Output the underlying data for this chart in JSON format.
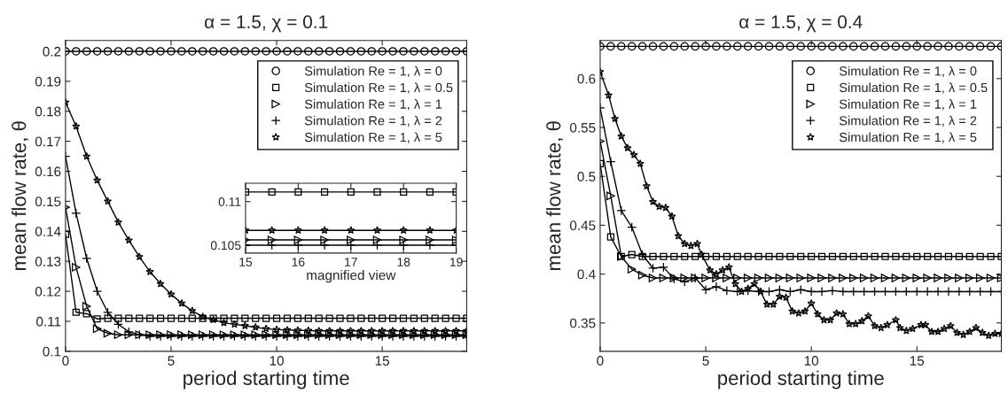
{
  "chart_data": [
    {
      "type": "line",
      "title": "α = 1.5, χ = 0.1",
      "xlabel": "period starting time",
      "ylabel": "mean flow rate, θ",
      "xlim": [
        0,
        19
      ],
      "ylim": [
        0.1,
        0.2036
      ],
      "xticks": [
        0,
        5,
        10,
        15
      ],
      "yticks": [
        0.1,
        0.11,
        0.12,
        0.13,
        0.14,
        0.15,
        0.16,
        0.17,
        0.18,
        0.19,
        0.2
      ],
      "grid": false,
      "legend": "top right",
      "x": [
        0,
        0.5,
        1,
        1.5,
        2,
        2.5,
        3,
        3.5,
        4,
        4.5,
        5,
        5.5,
        6,
        6.5,
        7,
        7.5,
        8,
        8.5,
        9,
        9.5,
        10,
        10.5,
        11,
        11.5,
        12,
        12.5,
        13,
        13.5,
        14,
        14.5,
        15,
        15.5,
        16,
        16.5,
        17,
        17.5,
        18,
        18.5,
        19
      ],
      "series": [
        {
          "name": "Simulation Re = 1, λ = 0",
          "color": "#000000",
          "marker": "circle",
          "values": [
            0.2,
            0.2,
            0.2,
            0.2,
            0.2,
            0.2,
            0.2,
            0.2,
            0.2,
            0.2,
            0.2,
            0.2,
            0.2,
            0.2,
            0.2,
            0.2,
            0.2,
            0.2,
            0.2,
            0.2,
            0.2,
            0.2,
            0.2,
            0.2,
            0.2,
            0.2,
            0.2,
            0.2,
            0.2,
            0.2,
            0.2,
            0.2,
            0.2,
            0.2,
            0.2,
            0.2,
            0.2,
            0.2,
            0.2
          ]
        },
        {
          "name": "Simulation Re = 1, λ = 0.5",
          "color": "#000000",
          "marker": "square",
          "values": [
            0.139,
            0.113,
            0.1125,
            0.1108,
            0.111,
            0.111,
            0.111,
            0.111,
            0.111,
            0.111,
            0.111,
            0.111,
            0.111,
            0.111,
            0.111,
            0.111,
            0.111,
            0.111,
            0.111,
            0.111,
            0.111,
            0.111,
            0.111,
            0.111,
            0.111,
            0.111,
            0.111,
            0.111,
            0.111,
            0.111,
            0.111,
            0.111,
            0.111,
            0.111,
            0.111,
            0.111,
            0.111,
            0.111,
            0.111
          ]
        },
        {
          "name": "Simulation Re = 1, λ = 1",
          "color": "#000000",
          "marker": "triangle",
          "values": [
            0.148,
            0.128,
            0.115,
            0.1075,
            0.106,
            0.1055,
            0.1055,
            0.1055,
            0.1055,
            0.1055,
            0.1055,
            0.1055,
            0.1055,
            0.1055,
            0.1055,
            0.1055,
            0.1055,
            0.1055,
            0.1055,
            0.1055,
            0.1055,
            0.1055,
            0.1055,
            0.1055,
            0.1055,
            0.1055,
            0.1055,
            0.1055,
            0.1055,
            0.1055,
            0.1055,
            0.1055,
            0.1055,
            0.1055,
            0.1055,
            0.1055,
            0.1055,
            0.1055,
            0.1055
          ]
        },
        {
          "name": "Simulation Re = 1, λ = 2",
          "color": "#000000",
          "marker": "cross",
          "values": [
            0.165,
            0.146,
            0.131,
            0.12,
            0.113,
            0.109,
            0.1065,
            0.1055,
            0.105,
            0.105,
            0.105,
            0.105,
            0.105,
            0.105,
            0.105,
            0.105,
            0.105,
            0.105,
            0.105,
            0.105,
            0.105,
            0.105,
            0.105,
            0.105,
            0.105,
            0.105,
            0.105,
            0.105,
            0.105,
            0.105,
            0.105,
            0.105,
            0.105,
            0.105,
            0.105,
            0.105,
            0.105,
            0.105,
            0.105
          ]
        },
        {
          "name": "Simulation Re = 1, λ = 5",
          "color": "#000000",
          "marker": "star",
          "values": [
            0.183,
            0.175,
            0.165,
            0.157,
            0.15,
            0.143,
            0.137,
            0.1315,
            0.1265,
            0.1225,
            0.119,
            0.116,
            0.1135,
            0.1115,
            0.1105,
            0.1095,
            0.109,
            0.1085,
            0.108,
            0.1075,
            0.1072,
            0.1071,
            0.107,
            0.1069,
            0.1068,
            0.1068,
            0.1068,
            0.1068,
            0.1068,
            0.1068,
            0.1068,
            0.1068,
            0.1068,
            0.1068,
            0.1068,
            0.1068,
            0.1068,
            0.1068,
            0.1068
          ]
        }
      ]
    },
    {
      "type": "line",
      "xlabel": "magnified view",
      "xlim": [
        15,
        19
      ],
      "ylim": [
        0.1041,
        0.1121
      ],
      "xticks": [
        15,
        16,
        17,
        18,
        19
      ],
      "yticks": [
        0.105,
        0.11
      ],
      "grid": false,
      "x": [
        15,
        15.5,
        16,
        16.5,
        17,
        17.5,
        18,
        18.5,
        19
      ],
      "series": [
        {
          "color": "#000000",
          "marker": "square",
          "values": [
            0.1111,
            0.1111,
            0.1111,
            0.1111,
            0.1111,
            0.1111,
            0.1111,
            0.1111,
            0.1111
          ]
        },
        {
          "color": "#000000",
          "marker": "star",
          "values": [
            0.1067,
            0.1067,
            0.1067,
            0.1067,
            0.1067,
            0.1067,
            0.1067,
            0.1067,
            0.1067
          ]
        },
        {
          "color": "#000000",
          "marker": "triangle",
          "values": [
            0.1056,
            0.1056,
            0.1056,
            0.1056,
            0.1056,
            0.1056,
            0.1056,
            0.1056,
            0.1056
          ]
        },
        {
          "color": "#000000",
          "marker": "cross",
          "values": [
            0.105,
            0.105,
            0.105,
            0.105,
            0.105,
            0.105,
            0.105,
            0.105,
            0.105
          ]
        }
      ]
    },
    {
      "type": "line",
      "title": "α = 1.5, χ = 0.4",
      "xlabel": "period starting time",
      "ylabel": "mean flow rate, θ",
      "xlim": [
        0,
        19
      ],
      "ylim": [
        0.321,
        0.639
      ],
      "xticks": [
        0,
        5,
        10,
        15
      ],
      "yticks": [
        0.35,
        0.4,
        0.45,
        0.5,
        0.55,
        0.6
      ],
      "grid": false,
      "legend": "top right",
      "x": [
        0,
        0.5,
        1,
        1.5,
        2,
        2.5,
        3,
        3.5,
        4,
        4.5,
        5,
        5.5,
        6,
        6.5,
        7,
        7.5,
        8,
        8.5,
        9,
        9.5,
        10,
        10.5,
        11,
        11.5,
        12,
        12.5,
        13,
        13.5,
        14,
        14.5,
        15,
        15.5,
        16,
        16.5,
        17,
        17.5,
        18,
        18.5,
        19
      ],
      "series": [
        {
          "name": "Simulation Re = 1, λ = 0",
          "color": "#000000",
          "marker": "circle",
          "values": [
            0.633,
            0.633,
            0.633,
            0.633,
            0.633,
            0.633,
            0.633,
            0.633,
            0.633,
            0.633,
            0.633,
            0.633,
            0.633,
            0.633,
            0.633,
            0.633,
            0.633,
            0.633,
            0.633,
            0.633,
            0.633,
            0.633,
            0.633,
            0.633,
            0.633,
            0.633,
            0.633,
            0.633,
            0.633,
            0.633,
            0.633,
            0.633,
            0.633,
            0.633,
            0.633,
            0.633,
            0.633,
            0.633,
            0.633
          ]
        },
        {
          "name": "Simulation Re = 1, λ = 0.5",
          "color": "#000000",
          "marker": "square",
          "values": [
            0.513,
            0.438,
            0.418,
            0.42,
            0.418,
            0.418,
            0.418,
            0.418,
            0.418,
            0.418,
            0.418,
            0.418,
            0.418,
            0.418,
            0.418,
            0.418,
            0.418,
            0.418,
            0.418,
            0.418,
            0.418,
            0.418,
            0.418,
            0.418,
            0.418,
            0.418,
            0.418,
            0.418,
            0.418,
            0.418,
            0.418,
            0.418,
            0.418,
            0.418,
            0.418,
            0.418,
            0.418,
            0.418,
            0.418
          ]
        },
        {
          "name": "Simulation Re = 1, λ = 1",
          "color": "#000000",
          "marker": "triangle",
          "values": [
            0.536,
            0.48,
            0.418,
            0.405,
            0.399,
            0.396,
            0.396,
            0.396,
            0.396,
            0.396,
            0.396,
            0.396,
            0.396,
            0.396,
            0.396,
            0.396,
            0.396,
            0.396,
            0.396,
            0.396,
            0.396,
            0.396,
            0.396,
            0.396,
            0.396,
            0.396,
            0.396,
            0.396,
            0.396,
            0.396,
            0.396,
            0.396,
            0.396,
            0.396,
            0.396,
            0.396,
            0.396,
            0.396,
            0.396
          ]
        },
        {
          "name": "Simulation Re = 1, λ = 2",
          "color": "#000000",
          "marker": "cross",
          "values": [
            0.57,
            0.515,
            0.465,
            0.448,
            0.42,
            0.406,
            0.407,
            0.395,
            0.392,
            0.396,
            0.384,
            0.387,
            0.383,
            0.382,
            0.383,
            0.382,
            0.382,
            0.384,
            0.382,
            0.384,
            0.382,
            0.382,
            0.383,
            0.382,
            0.382,
            0.382,
            0.382,
            0.382,
            0.382,
            0.382,
            0.382,
            0.382,
            0.382,
            0.382,
            0.382,
            0.382,
            0.382,
            0.382,
            0.382
          ]
        },
        {
          "name": "Simulation Re = 1, λ = 5",
          "color": "#000000",
          "marker": "star",
          "x": [
            0,
            0.4,
            0.7,
            1.0,
            1.3,
            1.6,
            1.9,
            2.2,
            2.5,
            2.8,
            3.1,
            3.4,
            3.7,
            4.0,
            4.3,
            4.6,
            4.8,
            5.2,
            5.5,
            5.8,
            6.1,
            6.4,
            6.7,
            7.0,
            7.3,
            7.6,
            7.9,
            8.2,
            8.5,
            8.8,
            9.1,
            9.4,
            9.7,
            10.0,
            10.3,
            10.6,
            10.9,
            11.2,
            11.5,
            11.8,
            12.1,
            12.4,
            12.7,
            13.0,
            13.3,
            13.6,
            14.0,
            14.2,
            14.5,
            14.8,
            15.2,
            15.4,
            15.7,
            16.0,
            16.3,
            16.6,
            16.9,
            17.2,
            17.5,
            17.8,
            18.1,
            18.4,
            18.7,
            19.0
          ],
          "values": [
            0.607,
            0.583,
            0.559,
            0.541,
            0.529,
            0.522,
            0.513,
            0.49,
            0.474,
            0.469,
            0.468,
            0.459,
            0.439,
            0.431,
            0.429,
            0.431,
            0.42,
            0.404,
            0.4,
            0.404,
            0.407,
            0.39,
            0.382,
            0.385,
            0.39,
            0.382,
            0.369,
            0.369,
            0.377,
            0.376,
            0.362,
            0.36,
            0.362,
            0.37,
            0.359,
            0.353,
            0.353,
            0.36,
            0.359,
            0.349,
            0.349,
            0.352,
            0.357,
            0.347,
            0.345,
            0.348,
            0.353,
            0.345,
            0.342,
            0.344,
            0.348,
            0.348,
            0.341,
            0.341,
            0.344,
            0.347,
            0.34,
            0.338,
            0.341,
            0.345,
            0.34,
            0.337,
            0.339,
            0.339
          ]
        }
      ]
    }
  ]
}
